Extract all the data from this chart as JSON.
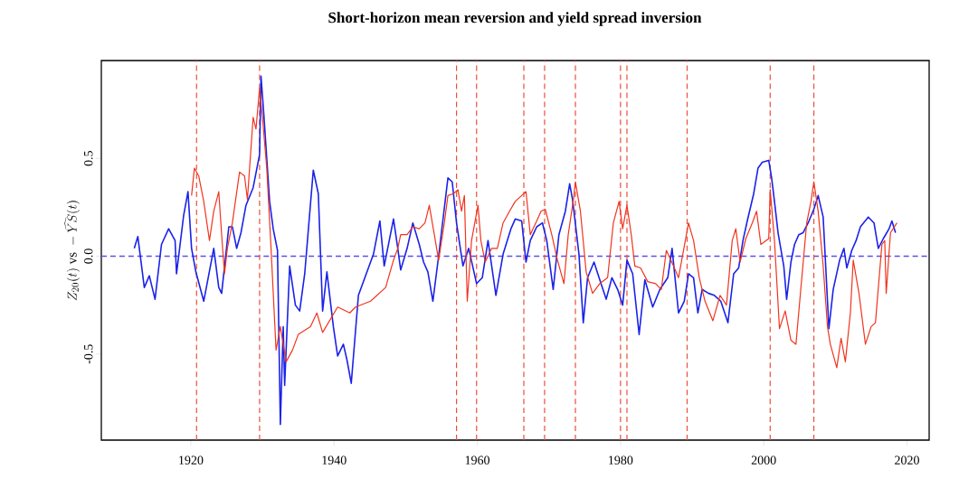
{
  "chart_data": {
    "type": "line",
    "title": "Short-horizon mean reversion and yield spread inversion",
    "ylabel": "Z_{20}(t)\\ \\mathrm{vs}\\ -\\widehat{YS}(t)",
    "xlim": [
      1907.5,
      2023.1
    ],
    "ylim": [
      -0.94,
      1.0
    ],
    "xticks": [
      1920,
      1940,
      1960,
      1980,
      2000,
      2020
    ],
    "yticks": [
      -0.5,
      {
        "value": 0,
        "label": "0.0"
      },
      0.5
    ],
    "ref_lines": [
      {
        "axis": "y",
        "value": 0,
        "color": "#5a50ee",
        "line_style": "dashed"
      },
      {
        "axis": "x",
        "value": 1920.8,
        "color": "#e8503a",
        "line_style": "dashed"
      },
      {
        "axis": "x",
        "value": 1929.6,
        "color": "#e8503a",
        "line_style": "dashed"
      },
      {
        "axis": "x",
        "value": 1957.1,
        "color": "#e8503a",
        "line_style": "dashed"
      },
      {
        "axis": "x",
        "value": 1959.9,
        "color": "#e8503a",
        "line_style": "dashed"
      },
      {
        "axis": "x",
        "value": 1966.5,
        "color": "#e8503a",
        "line_style": "dashed"
      },
      {
        "axis": "x",
        "value": 1969.4,
        "color": "#e8503a",
        "line_style": "dashed"
      },
      {
        "axis": "x",
        "value": 1973.7,
        "color": "#e8503a",
        "line_style": "dashed"
      },
      {
        "axis": "x",
        "value": 1980.0,
        "color": "#e8503a",
        "line_style": "dashed"
      },
      {
        "axis": "x",
        "value": 1980.9,
        "color": "#e8503a",
        "line_style": "dashed"
      },
      {
        "axis": "x",
        "value": 1989.3,
        "color": "#e8503a",
        "line_style": "dashed"
      },
      {
        "axis": "x",
        "value": 2000.9,
        "color": "#e8503a",
        "line_style": "dashed"
      },
      {
        "axis": "x",
        "value": 2007.0,
        "color": "#e8503a",
        "line_style": "dashed"
      }
    ],
    "series": [
      {
        "color": "#1a22e8",
        "x": [
          1912.1,
          1912.6,
          1913.5,
          1914.2,
          1915.0,
          1915.9,
          1916.9,
          1917.8,
          1918.0,
          1919.0,
          1919.6,
          1920.1,
          1920.7,
          1921.8,
          1923.2,
          1923.9,
          1924.3,
          1925.3,
          1925.8,
          1926.4,
          1927.0,
          1927.7,
          1928.7,
          1929.6,
          1929.8,
          1930.2,
          1931.0,
          1931.5,
          1932.1,
          1932.5,
          1932.9,
          1933.1,
          1933.8,
          1934.6,
          1935.2,
          1935.9,
          1937.1,
          1937.8,
          1938.4,
          1939.0,
          1939.9,
          1940.5,
          1941.3,
          1941.8,
          1942.4,
          1943.4,
          1944.3,
          1945.5,
          1946.4,
          1947.0,
          1948.3,
          1948.9,
          1949.3,
          1950.2,
          1951.0,
          1951.9,
          1952.5,
          1953.1,
          1953.8,
          1954.6,
          1955.9,
          1956.5,
          1957.1,
          1958.0,
          1958.8,
          1959.9,
          1960.7,
          1961.5,
          1962.6,
          1963.6,
          1964.7,
          1965.3,
          1966.2,
          1966.8,
          1967.4,
          1968.3,
          1969.1,
          1969.7,
          1970.6,
          1971.4,
          1972.3,
          1972.9,
          1973.3,
          1974.2,
          1974.8,
          1975.4,
          1976.3,
          1977.1,
          1978.0,
          1978.8,
          1979.6,
          1980.3,
          1980.9,
          1981.7,
          1982.6,
          1983.4,
          1984.5,
          1985.5,
          1986.6,
          1987.2,
          1988.1,
          1988.9,
          1989.5,
          1990.2,
          1990.8,
          1991.4,
          1992.3,
          1993.1,
          1994.0,
          1995.0,
          1995.8,
          1996.5,
          1997.1,
          1997.7,
          1998.6,
          1999.2,
          1999.8,
          2000.7,
          2001.1,
          2001.5,
          2002.0,
          2002.8,
          2003.2,
          2003.8,
          2004.3,
          2004.9,
          2005.5,
          2006.2,
          2007.0,
          2007.6,
          2008.3,
          2009.1,
          2009.7,
          2010.6,
          2011.2,
          2011.6,
          2012.3,
          2012.9,
          2013.5,
          2014.6,
          2015.4,
          2016.0,
          2016.7,
          2017.5,
          2017.9,
          2018.4
        ],
        "values": [
          0.04,
          0.1,
          -0.16,
          -0.1,
          -0.22,
          0.06,
          0.14,
          0.08,
          -0.09,
          0.21,
          0.33,
          0.04,
          -0.08,
          -0.23,
          0.04,
          -0.16,
          -0.19,
          0.15,
          0.15,
          0.04,
          0.12,
          0.26,
          0.35,
          0.52,
          0.92,
          0.72,
          0.28,
          0.14,
          0.03,
          -0.86,
          -0.36,
          -0.66,
          -0.05,
          -0.25,
          -0.28,
          -0.09,
          0.44,
          0.32,
          -0.28,
          -0.08,
          -0.36,
          -0.51,
          -0.45,
          -0.53,
          -0.65,
          -0.2,
          -0.11,
          0.01,
          0.18,
          -0.05,
          0.19,
          0.04,
          -0.07,
          0.04,
          0.17,
          0.06,
          -0.03,
          -0.08,
          -0.23,
          0.0,
          0.4,
          0.38,
          0.17,
          -0.05,
          0.04,
          -0.14,
          -0.11,
          0.08,
          -0.2,
          0.01,
          0.14,
          0.19,
          0.18,
          -0.03,
          0.08,
          0.15,
          0.17,
          0.08,
          -0.17,
          0.11,
          0.23,
          0.37,
          0.29,
          0.01,
          -0.34,
          -0.11,
          -0.03,
          -0.12,
          -0.22,
          -0.11,
          -0.17,
          -0.25,
          -0.02,
          -0.09,
          -0.4,
          -0.12,
          -0.26,
          -0.17,
          -0.11,
          0.04,
          -0.29,
          -0.23,
          -0.09,
          -0.11,
          -0.29,
          -0.17,
          -0.19,
          -0.2,
          -0.23,
          -0.34,
          -0.09,
          -0.06,
          0.08,
          0.18,
          0.32,
          0.45,
          0.48,
          0.49,
          0.4,
          0.28,
          0.12,
          -0.05,
          -0.22,
          -0.03,
          0.06,
          0.11,
          0.12,
          0.17,
          0.24,
          0.31,
          0.2,
          -0.37,
          -0.17,
          -0.02,
          0.04,
          -0.06,
          0.03,
          0.08,
          0.15,
          0.2,
          0.17,
          0.04,
          0.09,
          0.14,
          0.18,
          0.12
        ]
      },
      {
        "color": "#f0341e",
        "x": [
          1920.1,
          1920.5,
          1921.1,
          1921.8,
          1922.6,
          1923.2,
          1923.9,
          1924.3,
          1924.7,
          1925.1,
          1925.8,
          1926.8,
          1927.5,
          1927.9,
          1928.7,
          1929.1,
          1929.6,
          1930.0,
          1930.6,
          1931.2,
          1931.9,
          1932.5,
          1933.3,
          1934.2,
          1935.0,
          1936.7,
          1937.6,
          1938.4,
          1940.5,
          1942.2,
          1943.0,
          1945.1,
          1947.2,
          1948.3,
          1948.9,
          1949.3,
          1950.2,
          1951.0,
          1951.9,
          1952.7,
          1953.3,
          1954.0,
          1954.6,
          1955.4,
          1955.9,
          1956.7,
          1957.3,
          1957.8,
          1958.2,
          1958.6,
          1959.2,
          1960.1,
          1960.5,
          1961.1,
          1962.0,
          1962.8,
          1963.6,
          1964.5,
          1965.3,
          1966.2,
          1966.8,
          1967.4,
          1968.3,
          1968.9,
          1969.5,
          1970.4,
          1971.2,
          1972.1,
          1972.7,
          1973.5,
          1973.7,
          1974.4,
          1975.2,
          1976.1,
          1977.1,
          1978.2,
          1979.0,
          1979.8,
          1980.3,
          1980.9,
          1981.5,
          1982.0,
          1982.8,
          1983.8,
          1984.9,
          1985.7,
          1986.4,
          1987.4,
          1988.1,
          1989.5,
          1990.2,
          1991.0,
          1991.8,
          1992.9,
          1993.9,
          1994.8,
          1995.6,
          1996.1,
          1996.7,
          1997.5,
          1998.4,
          1999.0,
          1999.6,
          2000.7,
          2000.9,
          2001.5,
          2002.2,
          2003.0,
          2003.8,
          2004.5,
          2005.1,
          2006.0,
          2006.6,
          2007.0,
          2007.6,
          2008.3,
          2008.9,
          2009.3,
          2010.2,
          2010.8,
          2011.4,
          2012.1,
          2012.5,
          2013.3,
          2014.2,
          2015.0,
          2015.6,
          2016.5,
          2016.9,
          2017.1,
          2017.7,
          2018.6
        ],
        "values": [
          0.31,
          0.45,
          0.41,
          0.28,
          0.08,
          0.23,
          0.33,
          0.11,
          -0.09,
          0.04,
          0.17,
          0.43,
          0.41,
          0.29,
          0.71,
          0.65,
          0.86,
          0.71,
          0.45,
          0.04,
          -0.48,
          -0.36,
          -0.54,
          -0.48,
          -0.4,
          -0.36,
          -0.29,
          -0.39,
          -0.26,
          -0.29,
          -0.26,
          -0.23,
          -0.16,
          -0.02,
          0.04,
          0.11,
          0.11,
          0.15,
          0.14,
          0.17,
          0.26,
          0.11,
          -0.02,
          0.17,
          0.31,
          0.32,
          0.34,
          0.23,
          0.31,
          -0.23,
          0.08,
          0.26,
          0.08,
          -0.03,
          0.04,
          0.04,
          0.17,
          0.23,
          0.28,
          0.31,
          0.33,
          0.11,
          0.18,
          0.23,
          0.24,
          0.11,
          -0.02,
          -0.14,
          0.11,
          0.31,
          0.38,
          0.23,
          -0.08,
          -0.19,
          -0.14,
          -0.11,
          0.17,
          0.28,
          0.14,
          0.26,
          0.11,
          -0.05,
          -0.06,
          -0.13,
          -0.14,
          -0.17,
          0.03,
          -0.05,
          -0.11,
          0.17,
          0.08,
          -0.11,
          -0.23,
          -0.33,
          -0.2,
          -0.25,
          0.08,
          0.14,
          -0.03,
          0.09,
          0.17,
          0.23,
          0.06,
          0.09,
          0.34,
          0.08,
          -0.37,
          -0.28,
          -0.43,
          -0.45,
          -0.2,
          0.17,
          0.28,
          0.38,
          0.23,
          -0.05,
          -0.36,
          -0.45,
          -0.57,
          -0.42,
          -0.54,
          -0.29,
          -0.02,
          -0.19,
          -0.45,
          -0.36,
          -0.34,
          0.06,
          0.08,
          -0.19,
          0.12,
          0.17
        ]
      }
    ]
  }
}
